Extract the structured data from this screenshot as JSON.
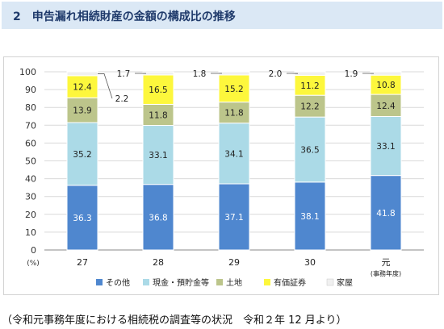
{
  "header": {
    "title": "2　申告漏れ相続財産の金額の構成比の推移"
  },
  "footer": {
    "source": "（令和元事務年度における相続税の調査等の状況　令和２年 12 月より）"
  },
  "colors": {
    "header_bg": "#dbe8f5",
    "sonota": "#4f87cf",
    "genkin": "#abdae7",
    "tochi": "#bcc58b",
    "yuka": "#fdf73c",
    "kaoku": "#f0f0f0"
  },
  "chart_data": {
    "type": "bar",
    "stacked": true,
    "percent": true,
    "categories": [
      "27",
      "28",
      "29",
      "30",
      "元"
    ],
    "category_sublabels": [
      "",
      "",
      "",
      "",
      "(事務年度)"
    ],
    "y_unit": "(%)",
    "ylim": [
      0,
      100
    ],
    "yticks": [
      0,
      10,
      20,
      30,
      40,
      50,
      60,
      70,
      80,
      90,
      100
    ],
    "grid": true,
    "legend_position": "bottom",
    "series": [
      {
        "name": "その他",
        "values": [
          36.3,
          36.8,
          37.1,
          38.1,
          41.8
        ],
        "color": "#4f87cf"
      },
      {
        "name": "現金・預貯金等",
        "values": [
          35.2,
          33.1,
          34.1,
          36.5,
          33.1
        ],
        "color": "#abdae7"
      },
      {
        "name": "土地",
        "values": [
          13.9,
          11.8,
          11.8,
          12.2,
          12.4
        ],
        "color": "#bcc58b"
      },
      {
        "name": "有価証券",
        "values": [
          12.4,
          16.5,
          15.2,
          11.2,
          10.8
        ],
        "color": "#fdf73c"
      },
      {
        "name": "家屋",
        "values": [
          2.2,
          1.7,
          1.8,
          2.0,
          1.9
        ],
        "color": "#f0f0f0"
      }
    ]
  }
}
